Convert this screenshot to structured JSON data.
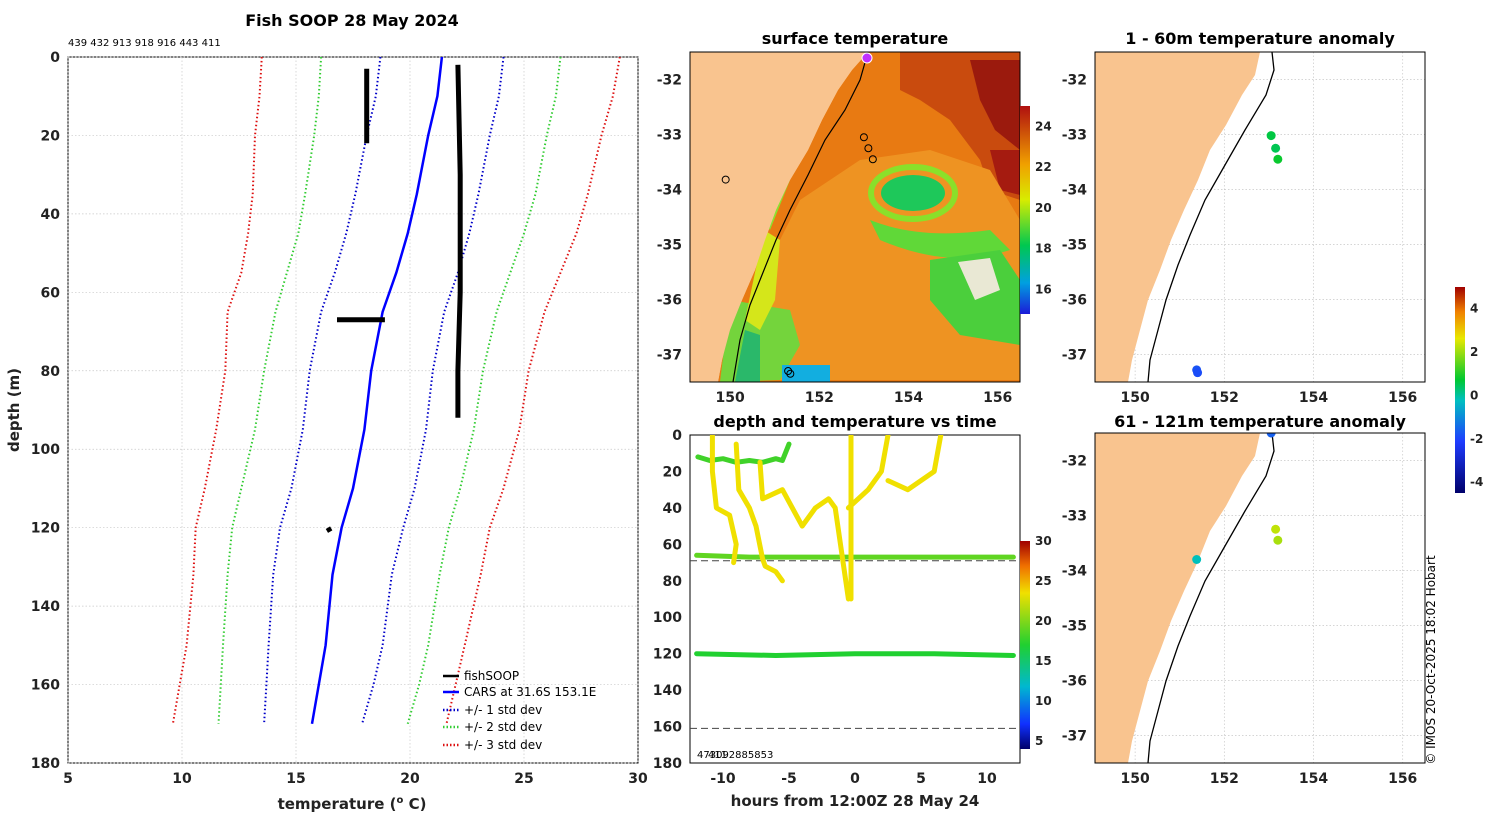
{
  "footer": {
    "credit": "© IMOS 20-Oct-2025 18:02 Hobart"
  },
  "chart_data": [
    {
      "id": "profile",
      "type": "line",
      "title": "Fish SOOP 28 May 2024",
      "subtitle": "439 432 913 918 916 443 411",
      "xlabel": "temperature (",
      "xlabel_sup": "o",
      "xlabel_end": " C)",
      "ylabel": "depth (m)",
      "xlim": [
        5,
        30
      ],
      "ylim": [
        0,
        180
      ],
      "xticks": [
        5,
        10,
        15,
        20,
        25,
        30
      ],
      "yticks": [
        0,
        20,
        40,
        60,
        80,
        100,
        120,
        140,
        160,
        180
      ],
      "legend": [
        "fishSOOP",
        "CARS at 31.6S 153.1E",
        "+/- 1 std dev",
        "+/- 2 std dev",
        "+/- 3 std dev"
      ],
      "colors": {
        "fishsoop": "#000000",
        "cars": "#0000ff",
        "std1": "#0000c8",
        "std2": "#33cc33",
        "std3": "#dd1111"
      },
      "series": [
        {
          "name": "CARS",
          "points": [
            [
              21.4,
              0
            ],
            [
              21.2,
              10
            ],
            [
              20.8,
              20
            ],
            [
              20.3,
              35
            ],
            [
              19.9,
              45
            ],
            [
              19.4,
              55
            ],
            [
              18.8,
              65
            ],
            [
              18.3,
              80
            ],
            [
              18.0,
              95
            ],
            [
              17.5,
              110
            ],
            [
              17.0,
              120
            ],
            [
              16.6,
              132
            ],
            [
              16.3,
              150
            ],
            [
              16.0,
              160
            ],
            [
              15.7,
              170
            ]
          ]
        },
        {
          "name": "+1 std",
          "points": [
            [
              24.1,
              0
            ],
            [
              23.9,
              10
            ],
            [
              23.5,
              20
            ],
            [
              23.0,
              35
            ],
            [
              22.6,
              45
            ],
            [
              22.1,
              55
            ],
            [
              21.5,
              65
            ],
            [
              21.0,
              80
            ],
            [
              20.7,
              95
            ],
            [
              20.2,
              110
            ],
            [
              19.7,
              120
            ],
            [
              19.2,
              132
            ],
            [
              18.8,
              150
            ],
            [
              18.4,
              160
            ],
            [
              17.9,
              170
            ]
          ]
        },
        {
          "name": "-1 std",
          "points": [
            [
              18.7,
              0
            ],
            [
              18.5,
              10
            ],
            [
              18.1,
              20
            ],
            [
              17.6,
              35
            ],
            [
              17.2,
              45
            ],
            [
              16.7,
              55
            ],
            [
              16.1,
              65
            ],
            [
              15.6,
              80
            ],
            [
              15.3,
              95
            ],
            [
              14.8,
              110
            ],
            [
              14.3,
              120
            ],
            [
              14.0,
              132
            ],
            [
              13.8,
              150
            ],
            [
              13.7,
              160
            ],
            [
              13.6,
              170
            ]
          ]
        },
        {
          "name": "+2 std",
          "points": [
            [
              26.6,
              0
            ],
            [
              26.4,
              10
            ],
            [
              26.0,
              20
            ],
            [
              25.5,
              35
            ],
            [
              25.0,
              45
            ],
            [
              24.4,
              55
            ],
            [
              23.8,
              65
            ],
            [
              23.2,
              80
            ],
            [
              22.8,
              95
            ],
            [
              22.2,
              110
            ],
            [
              21.7,
              120
            ],
            [
              21.3,
              132
            ],
            [
              20.8,
              150
            ],
            [
              20.4,
              160
            ],
            [
              19.9,
              170
            ]
          ]
        },
        {
          "name": "-2 std",
          "points": [
            [
              16.1,
              0
            ],
            [
              16.0,
              10
            ],
            [
              15.8,
              20
            ],
            [
              15.4,
              35
            ],
            [
              15.1,
              45
            ],
            [
              14.6,
              55
            ],
            [
              14.1,
              65
            ],
            [
              13.6,
              80
            ],
            [
              13.2,
              95
            ],
            [
              12.6,
              110
            ],
            [
              12.2,
              120
            ],
            [
              12.0,
              132
            ],
            [
              11.8,
              150
            ],
            [
              11.7,
              160
            ],
            [
              11.6,
              170
            ]
          ]
        },
        {
          "name": "+3 std",
          "points": [
            [
              29.2,
              0
            ],
            [
              28.9,
              10
            ],
            [
              28.4,
              20
            ],
            [
              27.8,
              35
            ],
            [
              27.3,
              45
            ],
            [
              26.6,
              55
            ],
            [
              25.9,
              65
            ],
            [
              25.2,
              80
            ],
            [
              24.8,
              95
            ],
            [
              24.1,
              110
            ],
            [
              23.5,
              120
            ],
            [
              23.1,
              132
            ],
            [
              22.4,
              150
            ],
            [
              22.0,
              160
            ],
            [
              21.6,
              170
            ]
          ]
        },
        {
          "name": "-3 std",
          "points": [
            [
              13.5,
              0
            ],
            [
              13.4,
              10
            ],
            [
              13.2,
              20
            ],
            [
              13.1,
              35
            ],
            [
              12.9,
              45
            ],
            [
              12.6,
              55
            ],
            [
              12.0,
              65
            ],
            [
              11.9,
              80
            ],
            [
              11.5,
              95
            ],
            [
              11.0,
              110
            ],
            [
              10.6,
              120
            ],
            [
              10.5,
              132
            ],
            [
              10.2,
              150
            ],
            [
              9.9,
              160
            ],
            [
              9.6,
              170
            ]
          ]
        }
      ],
      "fishsoop": [
        {
          "points": [
            [
              18.1,
              3
            ],
            [
              18.1,
              22
            ]
          ]
        },
        {
          "points": [
            [
              22.1,
              2
            ],
            [
              22.2,
              30
            ],
            [
              22.2,
              60
            ],
            [
              22.1,
              80
            ],
            [
              22.1,
              92
            ]
          ]
        },
        {
          "points": [
            [
              16.8,
              67
            ],
            [
              17.5,
              67
            ],
            [
              18.0,
              67
            ],
            [
              18.5,
              67
            ],
            [
              18.9,
              67
            ]
          ]
        },
        {
          "points": [
            [
              16.4,
              120
            ],
            [
              16.5,
              121
            ]
          ]
        }
      ]
    },
    {
      "id": "sst",
      "type": "heatmap",
      "title": "surface temperature",
      "xticks": [
        150,
        152,
        154,
        156
      ],
      "yticks": [
        -32,
        -33,
        -34,
        -35,
        -36,
        -37
      ],
      "xlim": [
        149.1,
        156.5
      ],
      "ylim": [
        -37.5,
        -31.5
      ],
      "colorbar_ticks": [
        16,
        18,
        20,
        22,
        24
      ],
      "colorbar_range": [
        14.8,
        25
      ],
      "stations": [
        {
          "lon": 153.0,
          "lat": -33.05
        },
        {
          "lon": 153.1,
          "lat": -33.25
        },
        {
          "lon": 153.2,
          "lat": -33.45
        },
        {
          "lon": 151.3,
          "lat": -37.3
        },
        {
          "lon": 151.35,
          "lat": -37.35
        },
        {
          "lon": 149.9,
          "lat": -33.82
        }
      ],
      "marker": {
        "lon": 153.05,
        "lat": -31.6
      }
    },
    {
      "id": "anom1",
      "type": "scatter",
      "title": "1 - 60m temperature anomaly",
      "xticks": [
        150,
        152,
        154,
        156
      ],
      "yticks": [
        -32,
        -33,
        -34,
        -35,
        -36,
        -37
      ],
      "xlim": [
        149.1,
        156.5
      ],
      "ylim": [
        -37.5,
        -31.5
      ],
      "colorbar_ticks": [
        4,
        2,
        0,
        -2,
        -4
      ],
      "colorbar_range": [
        -4.5,
        5
      ],
      "points": [
        {
          "lon": 153.05,
          "lat": -33.02,
          "anom": 0.6
        },
        {
          "lon": 153.15,
          "lat": -33.25,
          "anom": 0.5
        },
        {
          "lon": 153.2,
          "lat": -33.45,
          "anom": 0.8
        },
        {
          "lon": 151.38,
          "lat": -37.28,
          "anom": -1.8
        },
        {
          "lon": 151.4,
          "lat": -37.33,
          "anom": -1.9
        }
      ]
    },
    {
      "id": "anom2",
      "type": "scatter",
      "title": "61 - 121m temperature anomaly",
      "xticks": [
        150,
        152,
        154,
        156
      ],
      "yticks": [
        -32,
        -33,
        -34,
        -35,
        -36,
        -37
      ],
      "xlim": [
        149.1,
        156.5
      ],
      "ylim": [
        -37.5,
        -31.5
      ],
      "points": [
        {
          "lon": 153.05,
          "lat": -31.5,
          "anom": -1.6
        },
        {
          "lon": 153.15,
          "lat": -33.25,
          "anom": 2.3
        },
        {
          "lon": 153.2,
          "lat": -33.45,
          "anom": 2.1
        },
        {
          "lon": 151.38,
          "lat": -33.8,
          "anom": -0.2
        }
      ]
    },
    {
      "id": "timeseries",
      "type": "scatter",
      "title": "depth and temperature vs time",
      "xlabel": "hours from 12:00Z 28 May 24",
      "xlim": [
        -12.5,
        12.5
      ],
      "ylim": [
        0,
        180
      ],
      "xticks": [
        -10,
        -5,
        0,
        5,
        10
      ],
      "yticks": [
        0,
        20,
        40,
        60,
        80,
        100,
        120,
        140,
        160,
        180
      ],
      "hlines": [
        69,
        161
      ],
      "id_labels": "473092885853",
      "id_labels_over": "411",
      "colorbar_ticks": [
        5,
        10,
        15,
        20,
        25,
        30
      ],
      "colorbar_range": [
        4,
        30
      ],
      "series": [
        {
          "name": "shallow-green",
          "temp": 18,
          "points": [
            [
              -11.9,
              12
            ],
            [
              -11,
              14
            ],
            [
              -10,
              13
            ],
            [
              -9,
              15
            ],
            [
              -8,
              14
            ],
            [
              -7,
              15
            ],
            [
              -6,
              13
            ],
            [
              -5.5,
              14
            ],
            [
              -5,
              5
            ]
          ]
        },
        {
          "name": "mid-green",
          "temp": 19,
          "points": [
            [
              -12,
              66
            ],
            [
              -8,
              67
            ],
            [
              -4,
              67
            ],
            [
              0,
              67
            ],
            [
              4,
              67
            ],
            [
              8,
              67
            ],
            [
              12,
              67
            ]
          ]
        },
        {
          "name": "deep-green",
          "temp": 17,
          "points": [
            [
              -12,
              120
            ],
            [
              -6,
              121
            ],
            [
              0,
              120
            ],
            [
              6,
              120
            ],
            [
              12,
              121
            ]
          ]
        },
        {
          "name": "yellow-1",
          "temp": 23.5,
          "points": [
            [
              -10.8,
              0
            ],
            [
              -10.8,
              20
            ],
            [
              -10.5,
              40
            ],
            [
              -9.5,
              44
            ],
            [
              -9,
              60
            ],
            [
              -9.2,
              70
            ]
          ]
        },
        {
          "name": "yellow-2",
          "temp": 23.5,
          "points": [
            [
              -9,
              5
            ],
            [
              -8.8,
              30
            ],
            [
              -8,
              40
            ],
            [
              -7.5,
              50
            ],
            [
              -7,
              68
            ],
            [
              -6.8,
              72
            ],
            [
              -6,
              75
            ],
            [
              -5.5,
              80
            ]
          ]
        },
        {
          "name": "yellow-3",
          "temp": 23.5,
          "points": [
            [
              -7.2,
              15
            ],
            [
              -7,
              35
            ],
            [
              -5.5,
              30
            ],
            [
              -4,
              50
            ],
            [
              -3,
              40
            ],
            [
              -2,
              35
            ],
            [
              -1.5,
              40
            ],
            [
              -0.5,
              90
            ]
          ]
        },
        {
          "name": "yellow-4",
          "temp": 23.5,
          "points": [
            [
              -0.3,
              0
            ],
            [
              -0.3,
              90
            ]
          ]
        },
        {
          "name": "yellow-5",
          "temp": 23.5,
          "points": [
            [
              -0.5,
              40
            ],
            [
              1,
              30
            ],
            [
              2,
              20
            ],
            [
              2.5,
              0
            ]
          ]
        },
        {
          "name": "yellow-6",
          "temp": 23.5,
          "points": [
            [
              2.5,
              25
            ],
            [
              4,
              30
            ],
            [
              5,
              25
            ],
            [
              6,
              20
            ],
            [
              6.5,
              0
            ]
          ]
        }
      ]
    }
  ]
}
